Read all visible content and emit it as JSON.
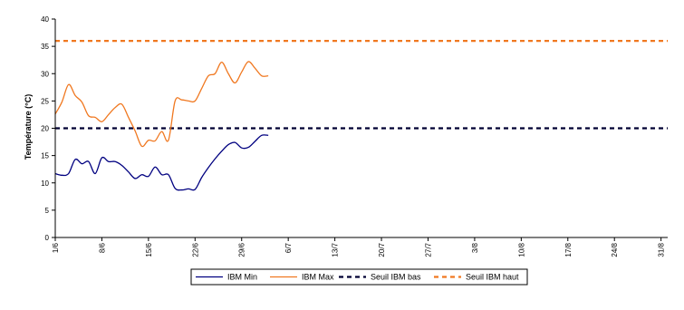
{
  "chart_data": {
    "type": "line",
    "title": "",
    "xlabel": "",
    "ylabel": "Température (°C)",
    "ylim": [
      0,
      40
    ],
    "yticks": [
      0,
      5,
      10,
      15,
      20,
      25,
      30,
      35,
      40
    ],
    "xlim": [
      0,
      92
    ],
    "xtick_labels": [
      "1/6",
      "8/6",
      "15/6",
      "22/6",
      "29/6",
      "6/7",
      "13/7",
      "20/7",
      "27/7",
      "3/8",
      "10/8",
      "17/8",
      "24/8",
      "31/8"
    ],
    "grid": false,
    "legend_position": "bottom",
    "series": [
      {
        "name": "IBM Min",
        "color": "#000080",
        "style": "solid",
        "x": [
          0,
          1,
          2,
          3,
          4,
          5,
          6,
          7,
          8,
          9,
          10,
          11,
          12,
          13,
          14,
          15,
          16,
          17,
          18,
          19,
          20,
          21,
          22,
          23,
          24,
          25,
          26,
          27,
          28,
          29,
          30,
          31,
          32
        ],
        "y": [
          11.7,
          11.4,
          11.7,
          14.3,
          13.5,
          13.9,
          11.7,
          14.6,
          13.9,
          13.9,
          13.2,
          12.0,
          10.8,
          11.5,
          11.2,
          12.9,
          11.5,
          11.5,
          9.0,
          8.7,
          8.9,
          8.8,
          11.0,
          12.8,
          14.4,
          15.8,
          17.0,
          17.4,
          16.4,
          16.5,
          17.6,
          18.7,
          18.7
        ]
      },
      {
        "name": "IBM Max",
        "color": "#F07820",
        "style": "solid",
        "x": [
          0,
          1,
          2,
          3,
          4,
          5,
          6,
          7,
          8,
          9,
          10,
          11,
          12,
          13,
          14,
          15,
          16,
          17,
          18,
          19,
          20,
          21,
          22,
          23,
          24,
          25,
          26,
          27,
          28,
          29,
          30,
          31,
          32
        ],
        "y": [
          22.6,
          24.8,
          28.0,
          26.0,
          24.8,
          22.3,
          22.0,
          21.2,
          22.5,
          23.8,
          24.4,
          22.0,
          19.5,
          16.7,
          17.8,
          17.7,
          19.4,
          17.8,
          25.0,
          25.2,
          25.0,
          25.0,
          27.3,
          29.6,
          30.0,
          32.1,
          30.0,
          28.3,
          30.3,
          32.2,
          31.0,
          29.6,
          29.6
        ]
      },
      {
        "name": "Seuil IBM bas",
        "color": "#000033",
        "style": "dashed",
        "x": [
          0,
          92
        ],
        "y": [
          20,
          20
        ]
      },
      {
        "name": "Seuil IBM haut",
        "color": "#F07820",
        "style": "dashed",
        "x": [
          0,
          92
        ],
        "y": [
          36,
          36
        ]
      }
    ]
  }
}
